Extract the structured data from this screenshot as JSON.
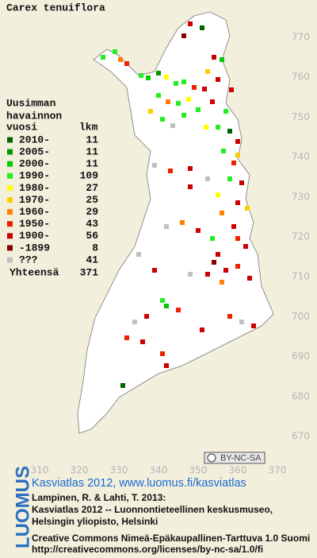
{
  "title": "Carex tenuiflora",
  "legend": {
    "heading": [
      "Uusimman",
      "havainnon",
      "vuosi"
    ],
    "count_heading": "lkm",
    "items": [
      {
        "label": "2010-",
        "color": "#006400",
        "count": 11
      },
      {
        "label": "2005-",
        "color": "#009a00",
        "count": 11
      },
      {
        "label": "2000-",
        "color": "#00cc00",
        "count": 11
      },
      {
        "label": "1990-",
        "color": "#22ee22",
        "count": 109
      },
      {
        "label": "1980-",
        "color": "#ffff00",
        "count": 27
      },
      {
        "label": "1970-",
        "color": "#ffcc00",
        "count": 25
      },
      {
        "label": "1960-",
        "color": "#ff8000",
        "count": 29
      },
      {
        "label": "1950-",
        "color": "#ee2200",
        "count": 43
      },
      {
        "label": "1900-",
        "color": "#cc0000",
        "count": 56
      },
      {
        "label": "-1899",
        "color": "#880000",
        "count": 8
      },
      {
        "label": "???",
        "color": "#c0c0c0",
        "count": 41
      }
    ],
    "total": {
      "label": "Yhteensä",
      "count": 371
    }
  },
  "grid": {
    "northing": [
      770,
      760,
      750,
      740,
      730,
      720,
      710,
      700,
      690,
      680,
      670
    ],
    "easting": [
      310,
      320,
      330,
      340,
      350,
      360,
      370
    ]
  },
  "license_badge": "BY-NC-SA",
  "brand": "LUOMUS",
  "credits": {
    "link": "Kasviatlas 2012, www.luomus.fi/kasviatlas",
    "citation": [
      "Lampinen, R. & Lahti, T. 2013:",
      "Kasviatlas 2012 -- Luonnontieteellinen keskusmuseo,",
      "Helsingin yliopisto, Helsinki"
    ],
    "license": [
      "Creative Commons Nimeä-Epäkaupallinen-Tarttuva 1.0 Suomi",
      "http://creativecommons.org/licenses/by-nc-sa/1.0/fi"
    ]
  }
}
